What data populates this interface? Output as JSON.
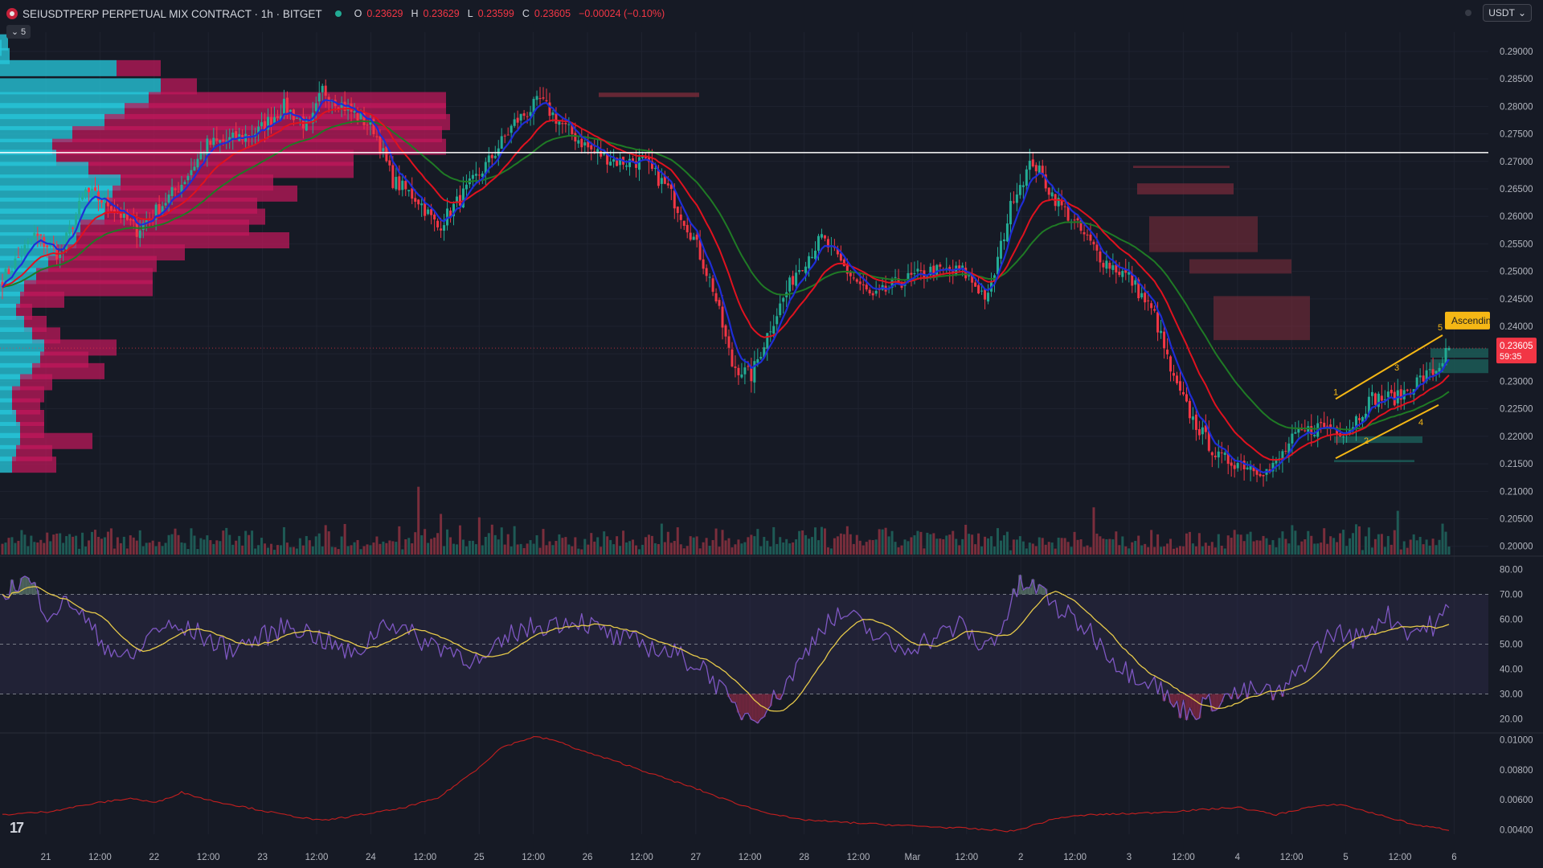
{
  "header": {
    "symbol_title": "SEIUSDTPERP PERPETUAL MIX CONTRACT · 1h · BITGET",
    "ohlc": [
      {
        "k": "O",
        "v": "0.23629"
      },
      {
        "k": "H",
        "v": "0.23629"
      },
      {
        "k": "L",
        "v": "0.23599"
      },
      {
        "k": "C",
        "v": "0.23605"
      },
      {
        "k": "",
        "v": "−0.00024 (−0.10%)"
      }
    ],
    "collapse_count": "5",
    "currency": "USDT"
  },
  "colors": {
    "background": "#161a25",
    "up": "#22ab94",
    "down": "#f23645",
    "ema_fast": "#1e2dd6",
    "ema_mid": "#e0121f",
    "ema_slow": "#1f7a25",
    "rsi": "#7e57c2",
    "rsi_ma": "#e6c94a",
    "hline": "#ffffff",
    "channel": "#f5b715",
    "vp_up": "#26c6da",
    "vp_down": "#c2185b",
    "osc": "#c41f1f"
  },
  "chart_data": [
    {
      "type": "candlestick",
      "panel": "price",
      "y_ticks": [
        "0.29000",
        "0.28500",
        "0.28000",
        "0.27500",
        "0.27000",
        "0.26500",
        "0.26000",
        "0.25500",
        "0.25000",
        "0.24500",
        "0.24000",
        "0.23500",
        "0.23000",
        "0.22500",
        "0.22000",
        "0.21500",
        "0.21000",
        "0.20500",
        "0.20000"
      ],
      "ylim": [
        0.1985,
        0.2935
      ],
      "x_ticks": [
        "21",
        "12:00",
        "22",
        "12:00",
        "23",
        "12:00",
        "24",
        "12:00",
        "25",
        "12:00",
        "26",
        "12:00",
        "27",
        "12:00",
        "28",
        "12:00",
        "Mar",
        "12:00",
        "2",
        "12:00",
        "3",
        "12:00",
        "4",
        "12:00",
        "5",
        "12:00",
        "6"
      ],
      "close_anchors": [
        [
          0,
          0.2485
        ],
        [
          10,
          0.2565
        ],
        [
          18,
          0.253
        ],
        [
          26,
          0.2645
        ],
        [
          34,
          0.262
        ],
        [
          42,
          0.2575
        ],
        [
          48,
          0.261
        ],
        [
          56,
          0.266
        ],
        [
          64,
          0.273
        ],
        [
          72,
          0.274
        ],
        [
          80,
          0.2755
        ],
        [
          88,
          0.28
        ],
        [
          96,
          0.276
        ],
        [
          100,
          0.283
        ],
        [
          108,
          0.2795
        ],
        [
          116,
          0.276
        ],
        [
          122,
          0.2665
        ],
        [
          130,
          0.263
        ],
        [
          136,
          0.258
        ],
        [
          144,
          0.264
        ],
        [
          152,
          0.27
        ],
        [
          160,
          0.277
        ],
        [
          168,
          0.281
        ],
        [
          176,
          0.276
        ],
        [
          184,
          0.272
        ],
        [
          192,
          0.27
        ],
        [
          200,
          0.27
        ],
        [
          208,
          0.265
        ],
        [
          216,
          0.256
        ],
        [
          222,
          0.247
        ],
        [
          228,
          0.233
        ],
        [
          234,
          0.231
        ],
        [
          240,
          0.24
        ],
        [
          248,
          0.25
        ],
        [
          256,
          0.256
        ],
        [
          264,
          0.25
        ],
        [
          272,
          0.245
        ],
        [
          280,
          0.248
        ],
        [
          290,
          0.25
        ],
        [
          300,
          0.25
        ],
        [
          308,
          0.245
        ],
        [
          316,
          0.264
        ],
        [
          322,
          0.27
        ],
        [
          328,
          0.264
        ],
        [
          336,
          0.258
        ],
        [
          344,
          0.252
        ],
        [
          352,
          0.249
        ],
        [
          360,
          0.242
        ],
        [
          366,
          0.23
        ],
        [
          372,
          0.223
        ],
        [
          380,
          0.216
        ],
        [
          388,
          0.215
        ],
        [
          396,
          0.2135
        ],
        [
          404,
          0.22
        ],
        [
          412,
          0.222
        ],
        [
          420,
          0.221
        ],
        [
          428,
          0.227
        ],
        [
          436,
          0.227
        ],
        [
          442,
          0.23
        ],
        [
          448,
          0.232
        ],
        [
          452,
          0.236
        ]
      ],
      "last_price": "0.23605",
      "countdown": "59:35",
      "horizontal_line": 0.2716,
      "channel_label": "Ascendin",
      "channel_points": [
        "1",
        "2",
        "3",
        "4",
        "5"
      ]
    },
    {
      "type": "volume",
      "panel": "price-bottom",
      "spikes": [
        [
          130,
          3.2
        ],
        [
          137,
          1.9
        ],
        [
          149,
          1.6
        ],
        [
          160,
          1.7
        ],
        [
          341,
          1.8
        ],
        [
          436,
          3.1
        ]
      ]
    },
    {
      "type": "line",
      "panel": "rsi",
      "y_ticks": [
        "80.00",
        "70.00",
        "60.00",
        "50.00",
        "40.00",
        "30.00",
        "20.00"
      ],
      "ylim": [
        15,
        85
      ],
      "bands": [
        70,
        50,
        30
      ],
      "anchors": [
        [
          0,
          71
        ],
        [
          8,
          76
        ],
        [
          14,
          63
        ],
        [
          22,
          67
        ],
        [
          30,
          52
        ],
        [
          40,
          43
        ],
        [
          48,
          57
        ],
        [
          60,
          55
        ],
        [
          70,
          48
        ],
        [
          80,
          52
        ],
        [
          90,
          58
        ],
        [
          100,
          52
        ],
        [
          110,
          45
        ],
        [
          120,
          60
        ],
        [
          130,
          52
        ],
        [
          140,
          48
        ],
        [
          150,
          42
        ],
        [
          160,
          55
        ],
        [
          170,
          58
        ],
        [
          180,
          60
        ],
        [
          192,
          52
        ],
        [
          200,
          50
        ],
        [
          210,
          46
        ],
        [
          220,
          40
        ],
        [
          228,
          25
        ],
        [
          234,
          21
        ],
        [
          240,
          26
        ],
        [
          248,
          40
        ],
        [
          256,
          58
        ],
        [
          264,
          62
        ],
        [
          272,
          54
        ],
        [
          280,
          48
        ],
        [
          290,
          52
        ],
        [
          300,
          58
        ],
        [
          306,
          48
        ],
        [
          312,
          56
        ],
        [
          318,
          74
        ],
        [
          324,
          72
        ],
        [
          330,
          64
        ],
        [
          340,
          55
        ],
        [
          350,
          40
        ],
        [
          360,
          35
        ],
        [
          366,
          25
        ],
        [
          372,
          23
        ],
        [
          380,
          28
        ],
        [
          390,
          31
        ],
        [
          400,
          30
        ],
        [
          408,
          45
        ],
        [
          416,
          55
        ],
        [
          424,
          52
        ],
        [
          432,
          62
        ],
        [
          440,
          55
        ],
        [
          448,
          58
        ],
        [
          452,
          64
        ]
      ]
    },
    {
      "type": "line",
      "panel": "oscillator",
      "y_ticks": [
        "0.01000",
        "0.00800",
        "0.00600",
        "0.00400"
      ],
      "ylim": [
        0.0037,
        0.0104
      ],
      "anchors": [
        [
          0,
          0.005
        ],
        [
          14,
          0.0052
        ],
        [
          30,
          0.0058
        ],
        [
          40,
          0.0061
        ],
        [
          48,
          0.0058
        ],
        [
          56,
          0.0065
        ],
        [
          64,
          0.006
        ],
        [
          76,
          0.0055
        ],
        [
          88,
          0.005
        ],
        [
          100,
          0.0046
        ],
        [
          112,
          0.005
        ],
        [
          124,
          0.0054
        ],
        [
          136,
          0.0061
        ],
        [
          148,
          0.008
        ],
        [
          156,
          0.0095
        ],
        [
          166,
          0.0102
        ],
        [
          172,
          0.01
        ],
        [
          182,
          0.0092
        ],
        [
          194,
          0.0084
        ],
        [
          206,
          0.0075
        ],
        [
          216,
          0.0068
        ],
        [
          226,
          0.006
        ],
        [
          236,
          0.0053
        ],
        [
          248,
          0.0047
        ],
        [
          262,
          0.0045
        ],
        [
          280,
          0.0043
        ],
        [
          300,
          0.0041
        ],
        [
          316,
          0.0039
        ],
        [
          322,
          0.0043
        ],
        [
          330,
          0.0048
        ],
        [
          340,
          0.005
        ],
        [
          356,
          0.0051
        ],
        [
          372,
          0.0053
        ],
        [
          386,
          0.0055
        ],
        [
          398,
          0.005
        ],
        [
          408,
          0.0055
        ],
        [
          418,
          0.0057
        ],
        [
          430,
          0.005
        ],
        [
          442,
          0.0043
        ],
        [
          452,
          0.004
        ]
      ]
    }
  ]
}
